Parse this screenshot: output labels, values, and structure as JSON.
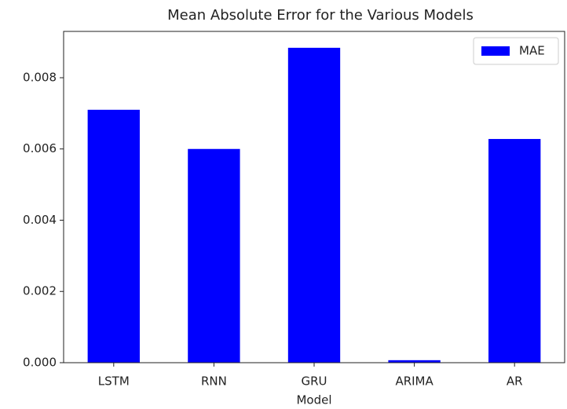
{
  "chart_data": {
    "type": "bar",
    "title": "Mean Absolute Error  for the Various Models",
    "x_label": "Model",
    "categories": [
      "LSTM",
      "RNN",
      "GRU",
      "ARIMA",
      "AR"
    ],
    "series": [
      {
        "name": "MAE",
        "color": "#0000ff",
        "values": [
          0.0071,
          0.006,
          0.00884,
          7e-05,
          0.00628
        ]
      }
    ],
    "ylim": [
      0,
      0.0093
    ],
    "yticks": [
      {
        "value": 0,
        "label": "0.000"
      },
      {
        "value": 0.002,
        "label": "0.002"
      },
      {
        "value": 0.004,
        "label": "0.004"
      },
      {
        "value": 0.006,
        "label": "0.006"
      },
      {
        "value": 0.008,
        "label": "0.008"
      }
    ],
    "legend": "upper right"
  }
}
